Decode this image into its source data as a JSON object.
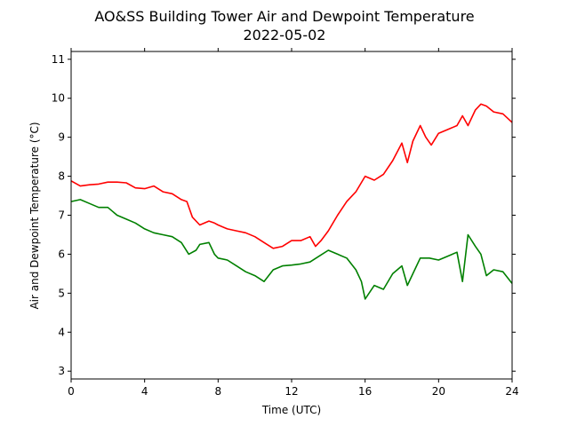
{
  "chart_data": {
    "type": "line",
    "title": "AO&SS Building Tower Air and Dewpoint Temperature",
    "subtitle": "2022-05-02",
    "xlabel": "Time (UTC)",
    "ylabel": "Air and Dewpoint Temperature (°C)",
    "xlim": [
      0,
      24
    ],
    "ylim": [
      2.8,
      11.2
    ],
    "xticks": [
      0,
      4,
      8,
      12,
      16,
      20,
      24
    ],
    "yticks": [
      3,
      4,
      5,
      6,
      7,
      8,
      9,
      10,
      11
    ],
    "grid": false,
    "legend": "none",
    "series": [
      {
        "color": "#ff0000",
        "x": [
          0,
          0.5,
          1,
          1.5,
          2,
          2.5,
          3,
          3.5,
          4,
          4.5,
          5,
          5.5,
          6,
          6.3,
          6.6,
          7,
          7.5,
          7.8,
          8,
          8.5,
          9,
          9.5,
          10,
          10.5,
          11,
          11.5,
          12,
          12.5,
          13,
          13.3,
          13.6,
          14,
          14.5,
          15,
          15.5,
          16,
          16.5,
          17,
          17.5,
          18,
          18.3,
          18.6,
          19,
          19.3,
          19.6,
          20,
          20.5,
          21,
          21.3,
          21.6,
          22,
          22.3,
          22.6,
          23,
          23.5,
          24
        ],
        "y": [
          7.88,
          7.75,
          7.78,
          7.8,
          7.85,
          7.85,
          7.83,
          7.7,
          7.68,
          7.75,
          7.6,
          7.55,
          7.4,
          7.35,
          6.95,
          6.75,
          6.85,
          6.8,
          6.75,
          6.65,
          6.6,
          6.55,
          6.45,
          6.3,
          6.15,
          6.2,
          6.35,
          6.35,
          6.45,
          6.2,
          6.35,
          6.6,
          7.0,
          7.35,
          7.6,
          8.0,
          7.9,
          8.05,
          8.4,
          8.85,
          8.35,
          8.9,
          9.3,
          9.0,
          8.8,
          9.1,
          9.2,
          9.3,
          9.55,
          9.3,
          9.7,
          9.85,
          9.8,
          9.65,
          9.6,
          9.38
        ]
      },
      {
        "color": "#008000",
        "x": [
          0,
          0.5,
          1,
          1.5,
          2,
          2.5,
          3,
          3.5,
          4,
          4.5,
          5,
          5.5,
          6,
          6.4,
          6.8,
          7,
          7.5,
          7.8,
          8,
          8.5,
          9,
          9.5,
          10,
          10.5,
          11,
          11.5,
          12,
          12.5,
          13,
          13.5,
          14,
          14.5,
          15,
          15.5,
          15.8,
          16,
          16.5,
          17,
          17.5,
          18,
          18.3,
          18.6,
          19,
          19.5,
          20,
          20.5,
          21,
          21.3,
          21.6,
          22,
          22.3,
          22.6,
          23,
          23.5,
          24
        ],
        "y": [
          7.35,
          7.4,
          7.3,
          7.2,
          7.2,
          7.0,
          6.9,
          6.8,
          6.65,
          6.55,
          6.5,
          6.45,
          6.3,
          6.0,
          6.1,
          6.25,
          6.3,
          6.0,
          5.9,
          5.85,
          5.7,
          5.55,
          5.45,
          5.3,
          5.6,
          5.7,
          5.72,
          5.75,
          5.8,
          5.95,
          6.1,
          6.0,
          5.9,
          5.6,
          5.3,
          4.85,
          5.2,
          5.1,
          5.5,
          5.7,
          5.2,
          5.5,
          5.9,
          5.9,
          5.85,
          5.95,
          6.05,
          5.3,
          6.5,
          6.2,
          6.0,
          5.45,
          5.6,
          5.55,
          5.25
        ]
      }
    ]
  }
}
